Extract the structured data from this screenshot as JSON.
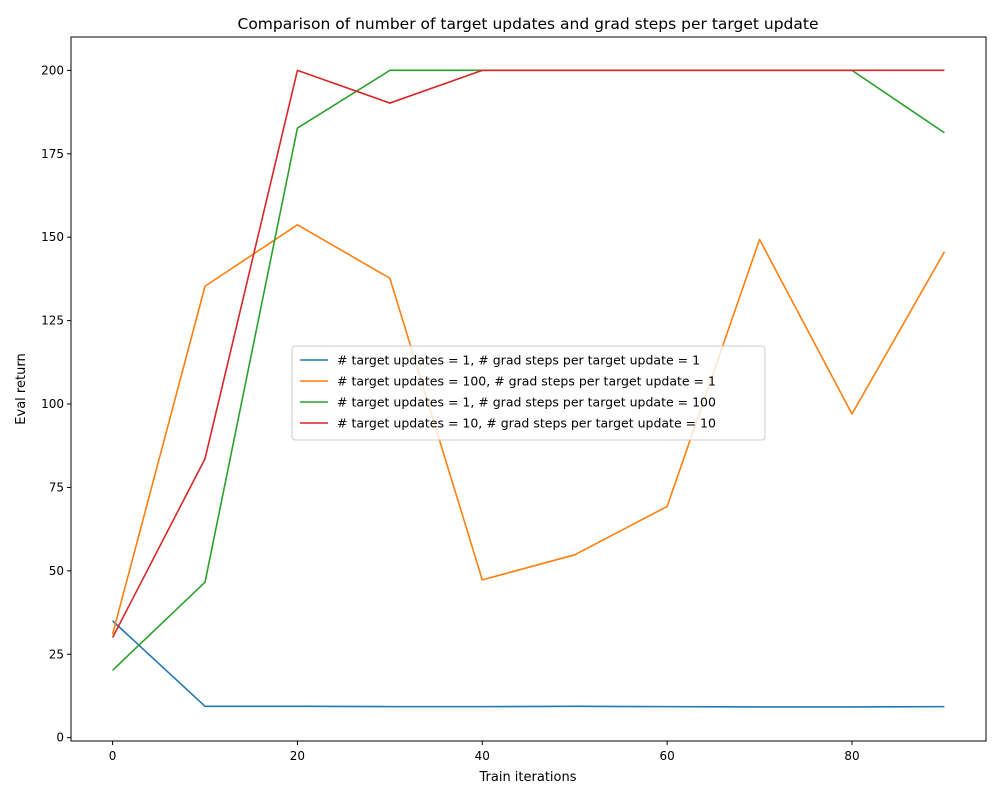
{
  "chart_data": {
    "type": "line",
    "title": "Comparison of number of target updates and grad steps per target update",
    "xlabel": "Train iterations",
    "ylabel": "Eval return",
    "x": [
      0,
      10,
      20,
      30,
      40,
      50,
      60,
      70,
      80,
      90
    ],
    "xlim": [
      -4.5,
      94.5
    ],
    "ylim": [
      -1,
      210
    ],
    "xticks": [
      0,
      20,
      40,
      60,
      80
    ],
    "yticks": [
      0,
      25,
      50,
      75,
      100,
      125,
      150,
      175,
      200
    ],
    "grid": false,
    "legend_position": "center-right",
    "series": [
      {
        "name": "# target updates = 1, # grad steps per target update = 1",
        "color": "#1f77b4",
        "values": [
          35,
          9.4,
          9.4,
          9.3,
          9.3,
          9.4,
          9.3,
          9.2,
          9.2,
          9.3
        ]
      },
      {
        "name": "# target updates = 100, # grad steps per target update = 1",
        "color": "#ff7f0e",
        "values": [
          31,
          135.3,
          153.7,
          137.7,
          47.3,
          54.8,
          69.3,
          149.3,
          97,
          145.6
        ]
      },
      {
        "name": "# target updates = 1, # grad steps per target update = 100",
        "color": "#2ca02c",
        "values": [
          20.2,
          46.6,
          182.7,
          200,
          200,
          200,
          200,
          200,
          200,
          181.3
        ]
      },
      {
        "name": "# target updates = 10, # grad steps per target update = 10",
        "color": "#d62728",
        "values": [
          30,
          83.6,
          200,
          190.2,
          200,
          200,
          200,
          200,
          200,
          200
        ]
      }
    ]
  }
}
